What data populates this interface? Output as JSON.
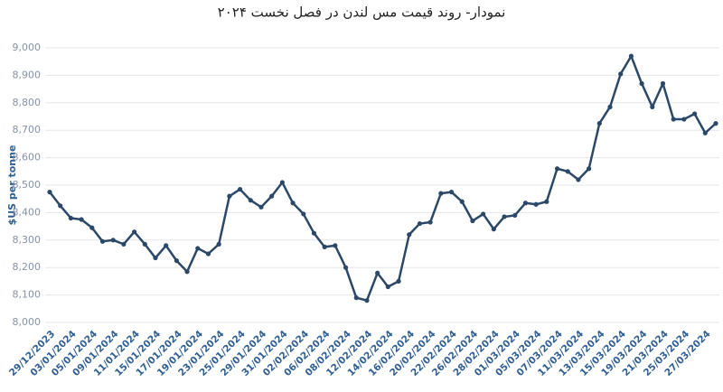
{
  "chart_data": {
    "type": "line",
    "title": "نمودار- روند قیمت مس لندن در فصل نخست ۲۰۲۴",
    "y_label": "$US per tonne",
    "categories": [
      "29/12/2023",
      null,
      "03/01/2024",
      null,
      "05/01/2024",
      null,
      "09/01/2024",
      null,
      "11/01/2024",
      null,
      "15/01/2024",
      null,
      "17/01/2024",
      null,
      "19/01/2024",
      null,
      "23/01/2024",
      null,
      "25/01/2024",
      null,
      "29/01/2024",
      null,
      "31/01/2024",
      null,
      "02/02/2024",
      null,
      "06/02/2024",
      null,
      "08/02/2024",
      null,
      "12/02/2024",
      null,
      "14/02/2024",
      null,
      "16/02/2024",
      null,
      "20/02/2024",
      null,
      "22/02/2024",
      null,
      "26/02/2024",
      null,
      "28/02/2024",
      null,
      "01/03/2024",
      null,
      "05/03/2024",
      null,
      "07/03/2024",
      null,
      "11/03/2024",
      null,
      "13/03/2024",
      null,
      "15/03/2024",
      null,
      "19/03/2024",
      null,
      "21/03/2024",
      null,
      "25/03/2024",
      null,
      "27/03/2024",
      null
    ],
    "series": [
      {
        "color": "#2c4868",
        "values": [
          8475,
          8425,
          8380,
          8375,
          8345,
          8295,
          8300,
          8285,
          8330,
          8285,
          8235,
          8280,
          8225,
          8185,
          8270,
          8250,
          8285,
          8460,
          8485,
          8445,
          8420,
          8460,
          8510,
          8435,
          8395,
          8325,
          8275,
          8280,
          8200,
          8090,
          8080,
          8180,
          8130,
          8150,
          8320,
          8360,
          8365,
          8470,
          8475,
          8440,
          8370,
          8395,
          8340,
          8385,
          8390,
          8435,
          8430,
          8440,
          8560,
          8550,
          8520,
          8560,
          8725,
          8785,
          8905,
          8970,
          8870,
          8785,
          8870,
          8740,
          8740,
          8760,
          8690,
          8725
        ]
      }
    ],
    "ylim": [
      8000,
      9000
    ],
    "yticks": [
      {
        "value": 8000,
        "label": "8,000"
      },
      {
        "value": 8100,
        "label": "8,100"
      },
      {
        "value": 8200,
        "label": "8,200"
      },
      {
        "value": 8300,
        "label": "8,300"
      },
      {
        "value": 8400,
        "label": "8,400"
      },
      {
        "value": 8500,
        "label": "8,500"
      },
      {
        "value": 8600,
        "label": "8,600"
      },
      {
        "value": 8700,
        "label": "8,700"
      },
      {
        "value": 8800,
        "label": "8,800"
      },
      {
        "value": 8900,
        "label": "8,900"
      },
      {
        "value": 9000,
        "label": "9,000"
      }
    ],
    "grid": true
  }
}
